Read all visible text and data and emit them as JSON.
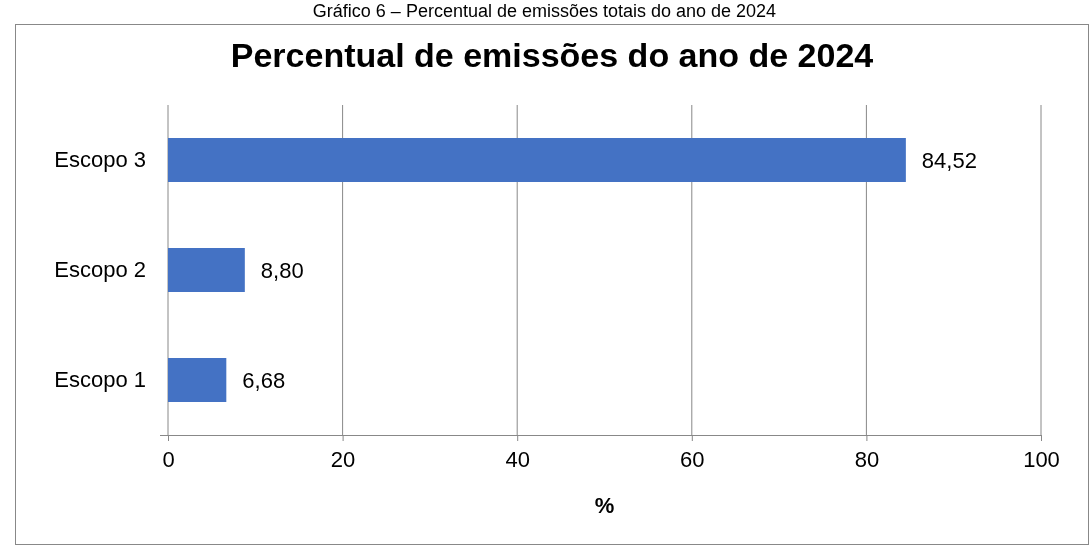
{
  "chart_data": {
    "type": "bar",
    "orientation": "horizontal",
    "title": "Percentual de emissões do ano de 2024",
    "xlabel": "%",
    "annotations": [
      "Gráfico 6 – Percentual de emissões totais do ano de 2024"
    ],
    "categories": [
      "Escopo 3",
      "Escopo 2",
      "Escopo 1"
    ],
    "values": [
      84.52,
      8.8,
      6.68
    ],
    "value_labels": [
      "84,52",
      "8,80",
      "6,68"
    ],
    "color": "#4472c4",
    "xlim": [
      0,
      100
    ],
    "xticks": [
      0,
      20,
      40,
      60,
      80,
      100
    ],
    "grid": "x"
  }
}
